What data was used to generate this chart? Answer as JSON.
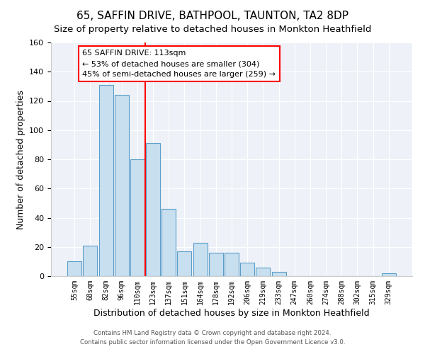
{
  "title": "65, SAFFIN DRIVE, BATHPOOL, TAUNTON, TA2 8DP",
  "subtitle": "Size of property relative to detached houses in Monkton Heathfield",
  "xlabel": "Distribution of detached houses by size in Monkton Heathfield",
  "ylabel": "Number of detached properties",
  "bar_labels": [
    "55sqm",
    "68sqm",
    "82sqm",
    "96sqm",
    "110sqm",
    "123sqm",
    "137sqm",
    "151sqm",
    "164sqm",
    "178sqm",
    "192sqm",
    "206sqm",
    "219sqm",
    "233sqm",
    "247sqm",
    "260sqm",
    "274sqm",
    "288sqm",
    "302sqm",
    "315sqm",
    "329sqm"
  ],
  "bar_values": [
    10,
    21,
    131,
    124,
    80,
    91,
    46,
    17,
    23,
    16,
    16,
    9,
    6,
    3,
    0,
    0,
    0,
    0,
    0,
    0,
    2
  ],
  "bar_color": "#c8dff0",
  "bar_edge_color": "#5b9ec9",
  "vline_x_index": 4.5,
  "vline_color": "red",
  "annotation_title": "65 SAFFIN DRIVE: 113sqm",
  "annotation_line1": "← 53% of detached houses are smaller (304)",
  "annotation_line2": "45% of semi-detached houses are larger (259) →",
  "annotation_box_facecolor": "white",
  "annotation_box_edgecolor": "red",
  "ylim": [
    0,
    160
  ],
  "yticks": [
    0,
    20,
    40,
    60,
    80,
    100,
    120,
    140,
    160
  ],
  "footer1": "Contains HM Land Registry data © Crown copyright and database right 2024.",
  "footer2": "Contains public sector information licensed under the Open Government Licence v3.0.",
  "title_fontsize": 11,
  "subtitle_fontsize": 9.5,
  "xlabel_fontsize": 9,
  "ylabel_fontsize": 9,
  "background_color": "#ffffff",
  "plot_bg_color": "#eef2f8"
}
